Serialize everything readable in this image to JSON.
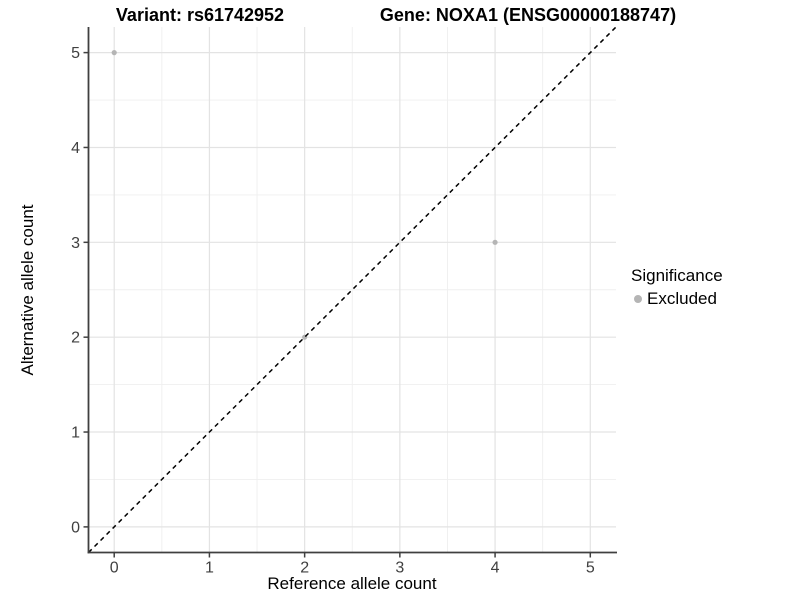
{
  "figure": {
    "title_left": "Variant: rs61742952",
    "title_right": "Gene: NOXA1 (ENSG00000188747)"
  },
  "axes": {
    "x_label": "Reference allele count",
    "y_label": "Alternative allele count"
  },
  "legend": {
    "title": "Significance",
    "items": [
      {
        "label": "Excluded",
        "marker": "circle-icon",
        "color": "#b5b5b5"
      }
    ]
  },
  "chart_data": {
    "type": "scatter",
    "title": "Variant: rs61742952 | Gene: NOXA1 (ENSG00000188747)",
    "xlabel": "Reference allele count",
    "ylabel": "Alternative allele count",
    "xlim": [
      -0.27,
      5.27
    ],
    "ylim": [
      -0.27,
      5.27
    ],
    "x_ticks": [
      0,
      1,
      2,
      3,
      4,
      5
    ],
    "y_ticks": [
      0,
      1,
      2,
      3,
      4,
      5
    ],
    "grid": "major+minor",
    "legend_position": "right",
    "reference_line": {
      "type": "identity",
      "slope": 1,
      "intercept": 0,
      "style": "dashed",
      "color": "#000000"
    },
    "series": [
      {
        "name": "Excluded",
        "color": "#b5b5b5",
        "points": [
          [
            0,
            5
          ],
          [
            2,
            2
          ],
          [
            4,
            3
          ]
        ]
      }
    ],
    "style_colors": {
      "axis_line": "#404040",
      "tick_text": "#404040",
      "grid_major": "#e3e3e3",
      "grid_minor": "#efefef",
      "background": "#ffffff"
    }
  }
}
